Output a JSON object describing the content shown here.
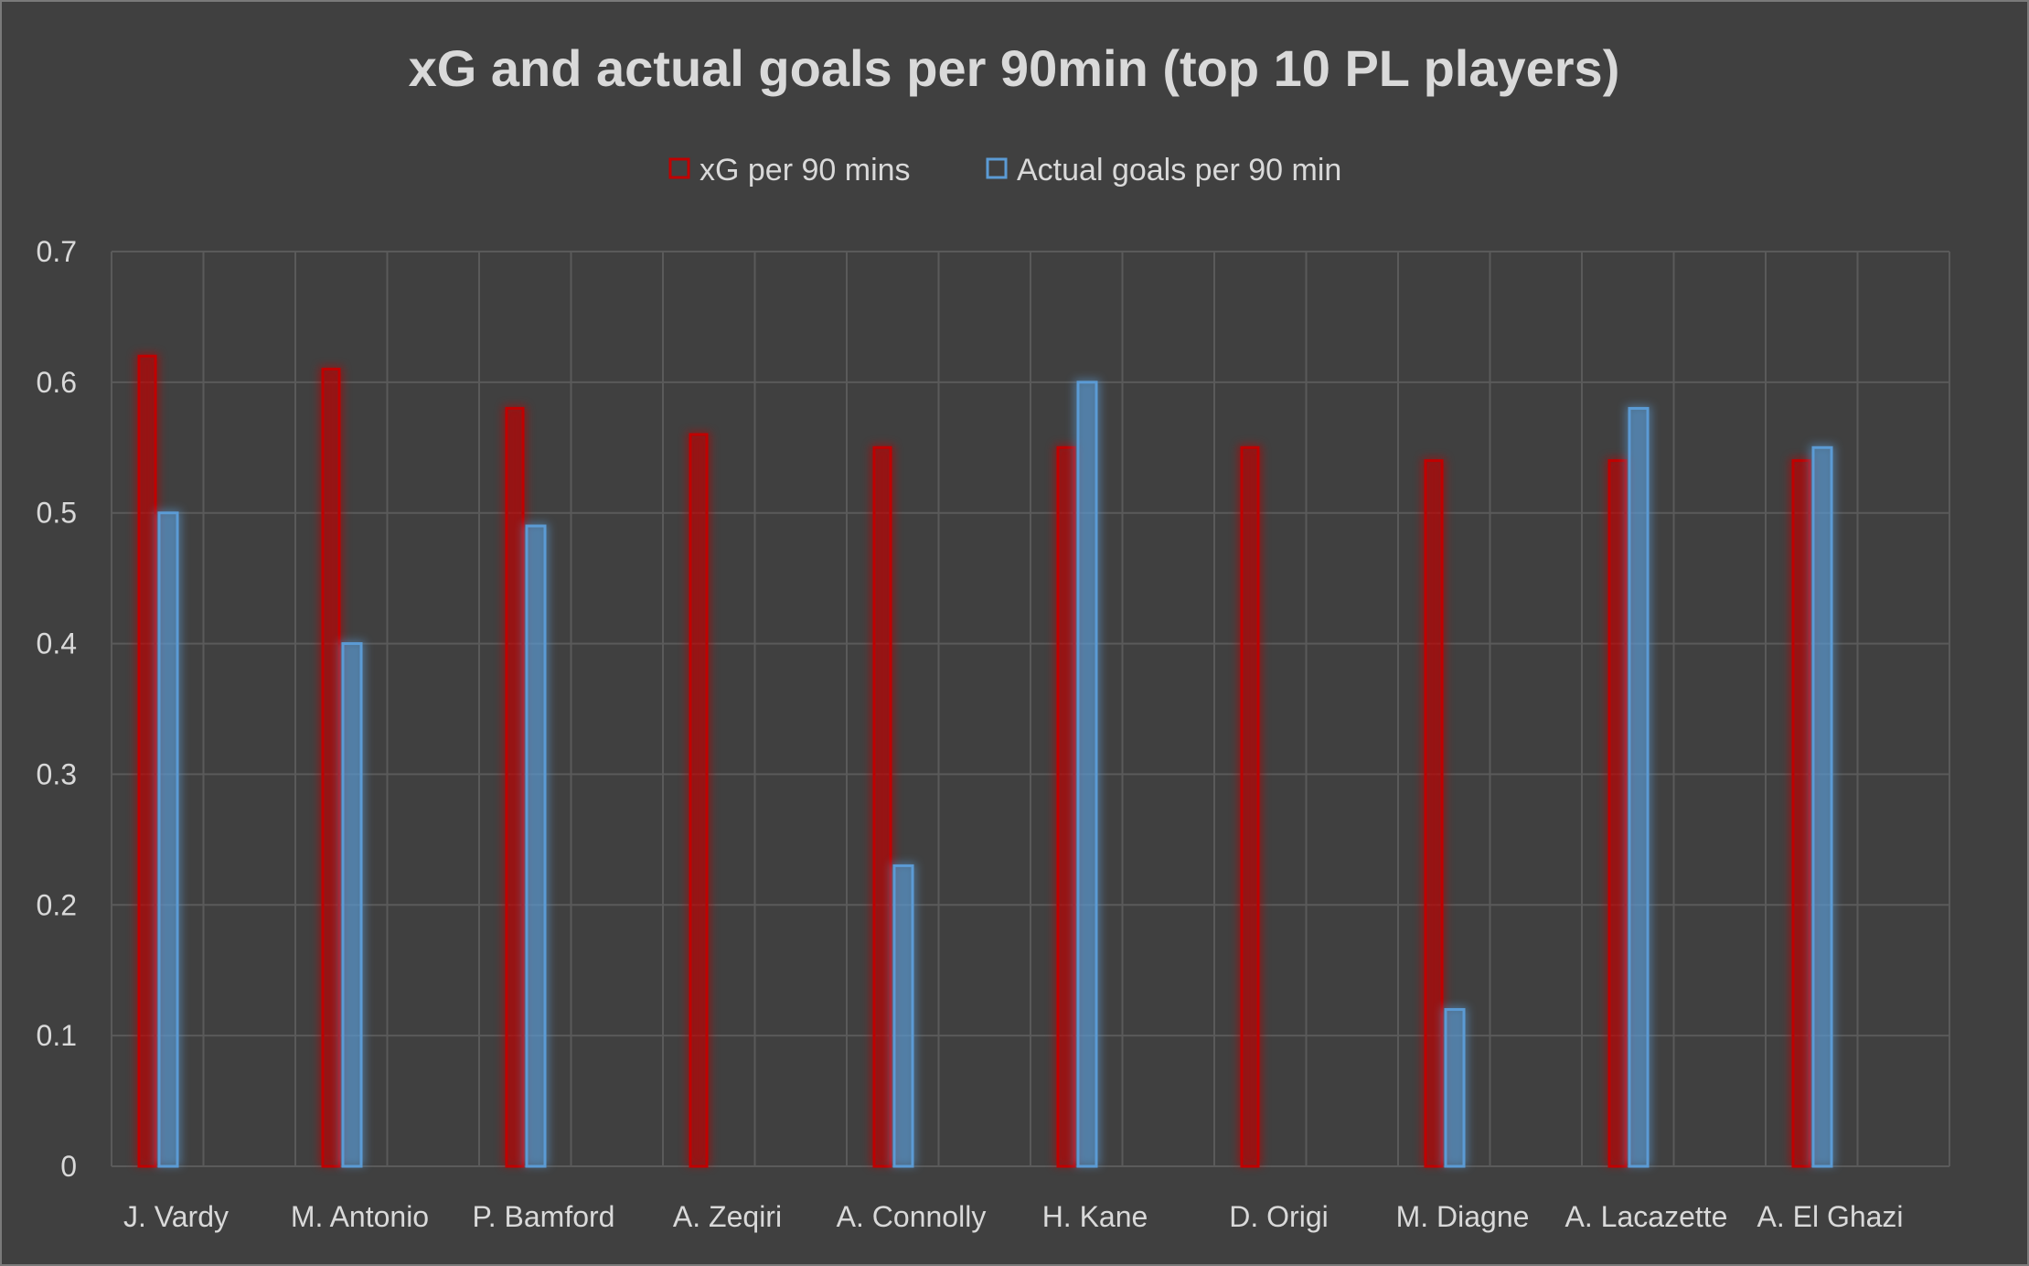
{
  "chart_data": {
    "type": "bar",
    "title": "xG and actual goals per 90min (top 10 PL players)",
    "xlabel": "",
    "ylabel": "",
    "ylim": [
      0,
      0.7
    ],
    "yticks": [
      "0",
      "0.1",
      "0.2",
      "0.3",
      "0.4",
      "0.5",
      "0.6",
      "0.7"
    ],
    "grid": true,
    "legend_position": "top",
    "categories": [
      "J. Vardy",
      "M. Antonio",
      "P. Bamford",
      "A. Zeqiri",
      "A. Connolly",
      "H. Kane",
      "D. Origi",
      "M. Diagne",
      "A. Lacazette",
      "A. El Ghazi"
    ],
    "series": [
      {
        "name": "xG per 90 mins",
        "color": "#c00000",
        "values": [
          0.62,
          0.61,
          0.58,
          0.56,
          0.55,
          0.55,
          0.55,
          0.54,
          0.54,
          0.54
        ]
      },
      {
        "name": "Actual goals per 90 min",
        "color": "#5b9bd5",
        "values": [
          0.5,
          0.4,
          0.49,
          null,
          0.23,
          0.6,
          null,
          0.12,
          0.58,
          0.55
        ]
      }
    ]
  }
}
